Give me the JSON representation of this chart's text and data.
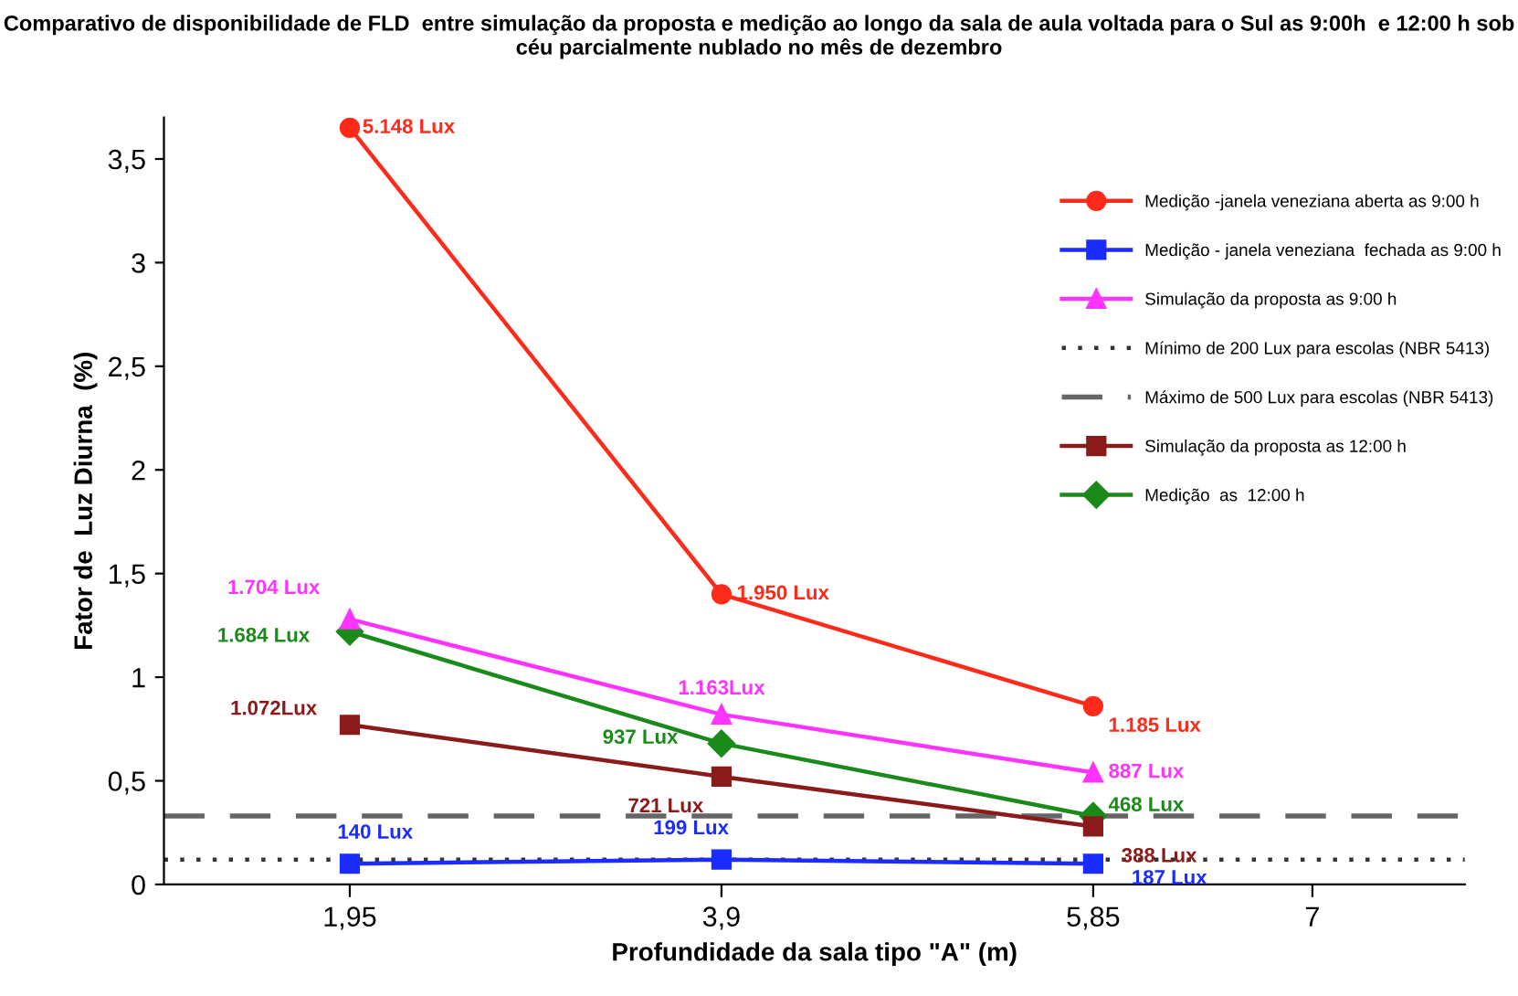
{
  "chart_data": {
    "type": "line",
    "title": "Comparativo de disponibilidade de FLD  entre simulação da proposta e medição ao longo da sala de aula voltada para o Sul as 9:00h  e 12:00 h sob céu parcialmente nublado no mês de dezembro",
    "xlabel": "Profundidade da sala tipo \"A\" (m)",
    "ylabel": "Fator de  Luz Diurna  (%)",
    "x": [
      1.95,
      3.9,
      5.85
    ],
    "xlim": [
      0.975,
      7.8
    ],
    "xticks": [
      {
        "value": 1.95,
        "label": "1,95"
      },
      {
        "value": 3.9,
        "label": "3,9"
      },
      {
        "value": 5.85,
        "label": "5,85"
      },
      7
    ],
    "ylim": [
      0,
      3.7
    ],
    "yticks": [
      {
        "value": 0,
        "label": "0"
      },
      {
        "value": 0.5,
        "label": "0,5"
      },
      {
        "value": 1,
        "label": "1"
      },
      {
        "value": 1.5,
        "label": "1,5"
      },
      {
        "value": 2,
        "label": "2"
      },
      {
        "value": 2.5,
        "label": "2,5"
      },
      {
        "value": 3,
        "label": "3"
      },
      {
        "value": 3.5,
        "label": "3,5"
      }
    ],
    "grid": false,
    "legend": "top right",
    "series": [
      {
        "name": "Medição -janela veneziana aberta as 9:00 h",
        "color": "#ff2a1a",
        "marker": "circle",
        "values": [
          3.65,
          1.4,
          0.86
        ]
      },
      {
        "name": "Medição - janela veneziana  fechada as 9:00 h",
        "color": "#1a2cff",
        "marker": "square",
        "values": [
          0.1,
          0.12,
          0.1
        ]
      },
      {
        "name": "Simulação da proposta as 9:00 h",
        "color": "#ff33ff",
        "marker": "triangle",
        "values": [
          1.28,
          0.82,
          0.54
        ]
      },
      {
        "name": "Simulação da proposta as 12:00 h",
        "color": "#8b1a1a",
        "marker": "square",
        "values": [
          0.77,
          0.52,
          0.28
        ]
      },
      {
        "name": "Medição  as  12:00 h",
        "color": "#1a8a1a",
        "marker": "diamond",
        "values": [
          1.22,
          0.68,
          0.33
        ]
      }
    ],
    "annotations": [
      {
        "text": "5.148 Lux",
        "x": 1.95,
        "y": 3.65
      },
      {
        "text": "1.950 Lux",
        "x": 3.9,
        "y": 1.4
      },
      {
        "text": "1.185 Lux",
        "x": 5.85,
        "y": 0.86
      },
      {
        "text": "140 Lux",
        "x": 1.95,
        "y": 0.1
      },
      {
        "text": "199 Lux",
        "x": 3.9,
        "y": 0.12
      },
      {
        "text": "187 Lux",
        "x": 5.85,
        "y": 0.1
      },
      {
        "text": "1.704 Lux",
        "x": 1.95,
        "y": 1.28
      },
      {
        "text": "1.163Lux",
        "x": 3.9,
        "y": 0.82
      },
      {
        "text": "887 Lux",
        "x": 5.85,
        "y": 0.54
      },
      {
        "text": "1.072Lux",
        "x": 1.95,
        "y": 0.77
      },
      {
        "text": "721 Lux",
        "x": 3.9,
        "y": 0.52
      },
      {
        "text": "388 Lux",
        "x": 5.85,
        "y": 0.28
      },
      {
        "text": "1.684 Lux",
        "x": 1.95,
        "y": 1.22
      },
      {
        "text": "937 Lux",
        "x": 3.9,
        "y": 0.68
      },
      {
        "text": "468 Lux",
        "x": 5.85,
        "y": 0.33
      }
    ],
    "ref_lines": [
      {
        "axis": "y",
        "value": 0.12,
        "label": "Mínimo de 200 Lux para escolas (NBR 5413)",
        "color": "#333333",
        "line_style": "dotted"
      },
      {
        "axis": "y",
        "value": 0.33,
        "label": "Máximo de 500 Lux para escolas (NBR 5413)",
        "color": "#666666",
        "line_style": "dashed"
      }
    ]
  }
}
